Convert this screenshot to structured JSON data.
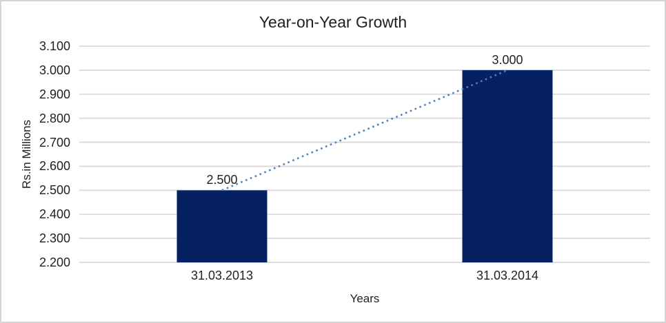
{
  "window": {
    "background": "#FFFFFF",
    "frame_border_color": "#D4D4D4"
  },
  "chart_data": {
    "type": "bar",
    "title": "Year-on-Year Growth",
    "categories": [
      "31.03.2013",
      "31.03.2014"
    ],
    "values": [
      2500,
      3000
    ],
    "value_labels": [
      "2.500",
      "3.000"
    ],
    "xlabel": "Years",
    "ylabel": "Rs.in Millions",
    "ylim": [
      2200,
      3100
    ],
    "ytick_step": 100,
    "ytick_labels": [
      "2.200",
      "2.300",
      "2.400",
      "2.500",
      "2.600",
      "2.700",
      "2.800",
      "2.900",
      "3.000",
      "3.100"
    ],
    "grid": true,
    "legend": false,
    "bar_color": "#052162",
    "gridline_color": "#D9D9D9",
    "text_color": "#1F1F1F",
    "trendline": {
      "type": "linear",
      "style": "dotted",
      "color": "#4E81BD",
      "from": [
        0,
        2500
      ],
      "to": [
        1,
        3000
      ]
    }
  }
}
